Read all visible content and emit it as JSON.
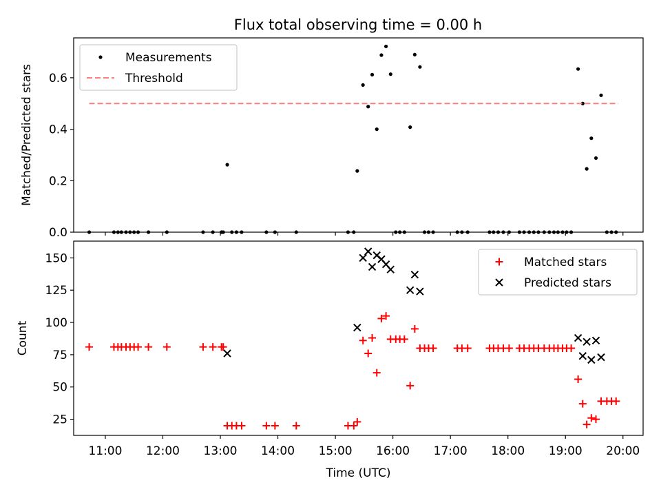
{
  "figure": {
    "title": "Flux total observing time = 0.00 h"
  },
  "chart_data": [
    {
      "type": "scatter",
      "ylabel": "Matched/Predicted stars",
      "xlabel": "",
      "xlim": [
        10.45,
        20.35
      ],
      "ylim": [
        0.0,
        0.755
      ],
      "yticks": [
        0.0,
        0.2,
        0.4,
        0.6
      ],
      "ytick_labels": [
        "0.0",
        "0.2",
        "0.4",
        "0.6"
      ],
      "grid": false,
      "legend": "top-left",
      "series": [
        {
          "name": "Measurements",
          "kind": "dot",
          "color": "#000000",
          "points": [
            [
              10.72,
              0
            ],
            [
              11.15,
              0
            ],
            [
              11.22,
              0
            ],
            [
              11.28,
              0
            ],
            [
              11.36,
              0
            ],
            [
              11.43,
              0
            ],
            [
              11.5,
              0
            ],
            [
              11.57,
              0
            ],
            [
              11.75,
              0
            ],
            [
              12.07,
              0
            ],
            [
              12.7,
              0
            ],
            [
              12.87,
              0
            ],
            [
              13.02,
              0
            ],
            [
              13.05,
              0
            ],
            [
              13.12,
              0.262
            ],
            [
              13.2,
              0
            ],
            [
              13.28,
              0
            ],
            [
              13.37,
              0
            ],
            [
              13.8,
              0
            ],
            [
              13.95,
              0
            ],
            [
              14.32,
              0
            ],
            [
              15.22,
              0
            ],
            [
              15.32,
              0
            ],
            [
              15.38,
              0.238
            ],
            [
              15.48,
              0.572
            ],
            [
              15.57,
              0.488
            ],
            [
              15.64,
              0.612
            ],
            [
              15.72,
              0.4
            ],
            [
              15.8,
              0.688
            ],
            [
              15.88,
              0.722
            ],
            [
              15.96,
              0.614
            ],
            [
              16.05,
              0
            ],
            [
              16.12,
              0
            ],
            [
              16.2,
              0
            ],
            [
              16.3,
              0.408
            ],
            [
              16.38,
              0.69
            ],
            [
              16.47,
              0.642
            ],
            [
              16.55,
              0
            ],
            [
              16.62,
              0
            ],
            [
              16.7,
              0
            ],
            [
              17.12,
              0
            ],
            [
              17.2,
              0
            ],
            [
              17.3,
              0
            ],
            [
              17.68,
              0
            ],
            [
              17.75,
              0
            ],
            [
              17.83,
              0
            ],
            [
              17.92,
              0
            ],
            [
              18.02,
              0
            ],
            [
              18.2,
              0
            ],
            [
              18.28,
              0
            ],
            [
              18.37,
              0
            ],
            [
              18.45,
              0
            ],
            [
              18.53,
              0
            ],
            [
              18.63,
              0
            ],
            [
              18.72,
              0
            ],
            [
              18.8,
              0
            ],
            [
              18.87,
              0
            ],
            [
              18.95,
              0
            ],
            [
              19.02,
              0
            ],
            [
              19.1,
              0
            ],
            [
              19.22,
              0.634
            ],
            [
              19.3,
              0.5
            ],
            [
              19.37,
              0.246
            ],
            [
              19.45,
              0.365
            ],
            [
              19.53,
              0.288
            ],
            [
              19.62,
              0.532
            ],
            [
              19.72,
              0
            ],
            [
              19.8,
              0
            ],
            [
              19.88,
              0
            ]
          ]
        },
        {
          "name": "Threshold",
          "kind": "dashed-line",
          "color": "#ff7f7f",
          "x": [
            10.72,
            19.92
          ],
          "y": [
            0.5,
            0.5
          ]
        }
      ]
    },
    {
      "type": "scatter",
      "ylabel": "Count",
      "xlabel": "Time (UTC)",
      "xlim": [
        10.45,
        20.35
      ],
      "ylim": [
        12.5,
        163
      ],
      "yticks": [
        25,
        50,
        75,
        100,
        125,
        150
      ],
      "ytick_labels": [
        "25",
        "50",
        "75",
        "100",
        "125",
        "150"
      ],
      "xticks": [
        11,
        12,
        13,
        14,
        15,
        16,
        17,
        18,
        19,
        20
      ],
      "xtick_labels": [
        "11:00",
        "12:00",
        "13:00",
        "14:00",
        "15:00",
        "16:00",
        "17:00",
        "18:00",
        "19:00",
        "20:00"
      ],
      "grid": false,
      "legend": "top-right",
      "series": [
        {
          "name": "Matched stars",
          "kind": "plus",
          "color": "#ff0000",
          "points": [
            [
              10.72,
              81
            ],
            [
              11.15,
              81
            ],
            [
              11.22,
              81
            ],
            [
              11.28,
              81
            ],
            [
              11.36,
              81
            ],
            [
              11.43,
              81
            ],
            [
              11.5,
              81
            ],
            [
              11.57,
              81
            ],
            [
              11.75,
              81
            ],
            [
              12.07,
              81
            ],
            [
              12.7,
              81
            ],
            [
              12.87,
              81
            ],
            [
              13.02,
              81
            ],
            [
              13.05,
              81
            ],
            [
              13.12,
              20
            ],
            [
              13.2,
              20
            ],
            [
              13.28,
              20
            ],
            [
              13.37,
              20
            ],
            [
              13.8,
              20
            ],
            [
              13.95,
              20
            ],
            [
              14.32,
              20
            ],
            [
              15.22,
              20
            ],
            [
              15.32,
              20
            ],
            [
              15.38,
              23
            ],
            [
              15.48,
              86
            ],
            [
              15.57,
              76
            ],
            [
              15.64,
              88
            ],
            [
              15.72,
              61
            ],
            [
              15.8,
              103
            ],
            [
              15.88,
              105
            ],
            [
              15.96,
              87
            ],
            [
              16.05,
              87
            ],
            [
              16.12,
              87
            ],
            [
              16.2,
              87
            ],
            [
              16.3,
              51
            ],
            [
              16.38,
              95
            ],
            [
              16.47,
              80
            ],
            [
              16.55,
              80
            ],
            [
              16.62,
              80
            ],
            [
              16.7,
              80
            ],
            [
              17.12,
              80
            ],
            [
              17.2,
              80
            ],
            [
              17.3,
              80
            ],
            [
              17.68,
              80
            ],
            [
              17.75,
              80
            ],
            [
              17.83,
              80
            ],
            [
              17.92,
              80
            ],
            [
              18.02,
              80
            ],
            [
              18.2,
              80
            ],
            [
              18.28,
              80
            ],
            [
              18.37,
              80
            ],
            [
              18.45,
              80
            ],
            [
              18.53,
              80
            ],
            [
              18.63,
              80
            ],
            [
              18.72,
              80
            ],
            [
              18.8,
              80
            ],
            [
              18.87,
              80
            ],
            [
              18.95,
              80
            ],
            [
              19.02,
              80
            ],
            [
              19.1,
              80
            ],
            [
              19.22,
              56
            ],
            [
              19.3,
              37
            ],
            [
              19.37,
              21
            ],
            [
              19.45,
              26
            ],
            [
              19.53,
              25
            ],
            [
              19.62,
              39
            ],
            [
              19.72,
              39
            ],
            [
              19.8,
              39
            ],
            [
              19.88,
              39
            ]
          ]
        },
        {
          "name": "Predicted stars",
          "kind": "x",
          "color": "#000000",
          "points": [
            [
              13.12,
              76
            ],
            [
              15.38,
              96
            ],
            [
              15.48,
              150
            ],
            [
              15.57,
              155
            ],
            [
              15.64,
              143
            ],
            [
              15.72,
              152
            ],
            [
              15.8,
              149
            ],
            [
              15.88,
              145
            ],
            [
              15.96,
              141
            ],
            [
              16.3,
              125
            ],
            [
              16.38,
              137
            ],
            [
              16.47,
              124
            ],
            [
              19.22,
              88
            ],
            [
              19.3,
              74
            ],
            [
              19.37,
              85
            ],
            [
              19.45,
              71
            ],
            [
              19.53,
              86
            ],
            [
              19.62,
              73
            ]
          ]
        }
      ]
    }
  ]
}
